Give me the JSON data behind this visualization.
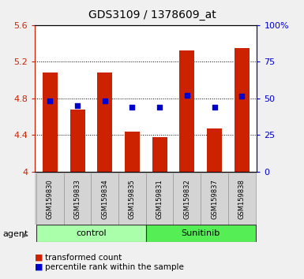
{
  "title": "GDS3109 / 1378609_at",
  "samples": [
    "GSM159830",
    "GSM159833",
    "GSM159834",
    "GSM159835",
    "GSM159831",
    "GSM159832",
    "GSM159837",
    "GSM159838"
  ],
  "bar_values": [
    5.08,
    4.68,
    5.08,
    4.44,
    4.38,
    5.32,
    4.47,
    5.35
  ],
  "blue_values": [
    4.77,
    4.72,
    4.77,
    4.7,
    4.7,
    4.83,
    4.7,
    4.82
  ],
  "bar_color": "#cc2200",
  "dot_color": "#0000cc",
  "ylim_left": [
    4.0,
    5.6
  ],
  "ylim_right": [
    0,
    100
  ],
  "yticks_left": [
    4.0,
    4.4,
    4.8,
    5.2,
    5.6
  ],
  "yticks_right": [
    0,
    25,
    50,
    75,
    100
  ],
  "ytick_labels_right": [
    "0",
    "25",
    "50",
    "75",
    "100%"
  ],
  "ytick_labels_left": [
    "4",
    "4.4",
    "4.8",
    "5.2",
    "5.6"
  ],
  "groups": [
    {
      "label": "control",
      "indices": [
        0,
        1,
        2,
        3
      ],
      "color": "#aaffaa"
    },
    {
      "label": "Sunitinib",
      "indices": [
        4,
        5,
        6,
        7
      ],
      "color": "#55ee55"
    }
  ],
  "agent_label": "agent",
  "legend_bar_label": "transformed count",
  "legend_dot_label": "percentile rank within the sample",
  "bar_width": 0.55,
  "background_color": "#f0f0f0",
  "plot_bg_color": "#ffffff",
  "title_fontsize": 10,
  "tick_label_fontsize": 8,
  "sample_label_fontsize": 6,
  "group_label_fontsize": 8,
  "legend_fontsize": 7.5,
  "agent_fontsize": 8
}
